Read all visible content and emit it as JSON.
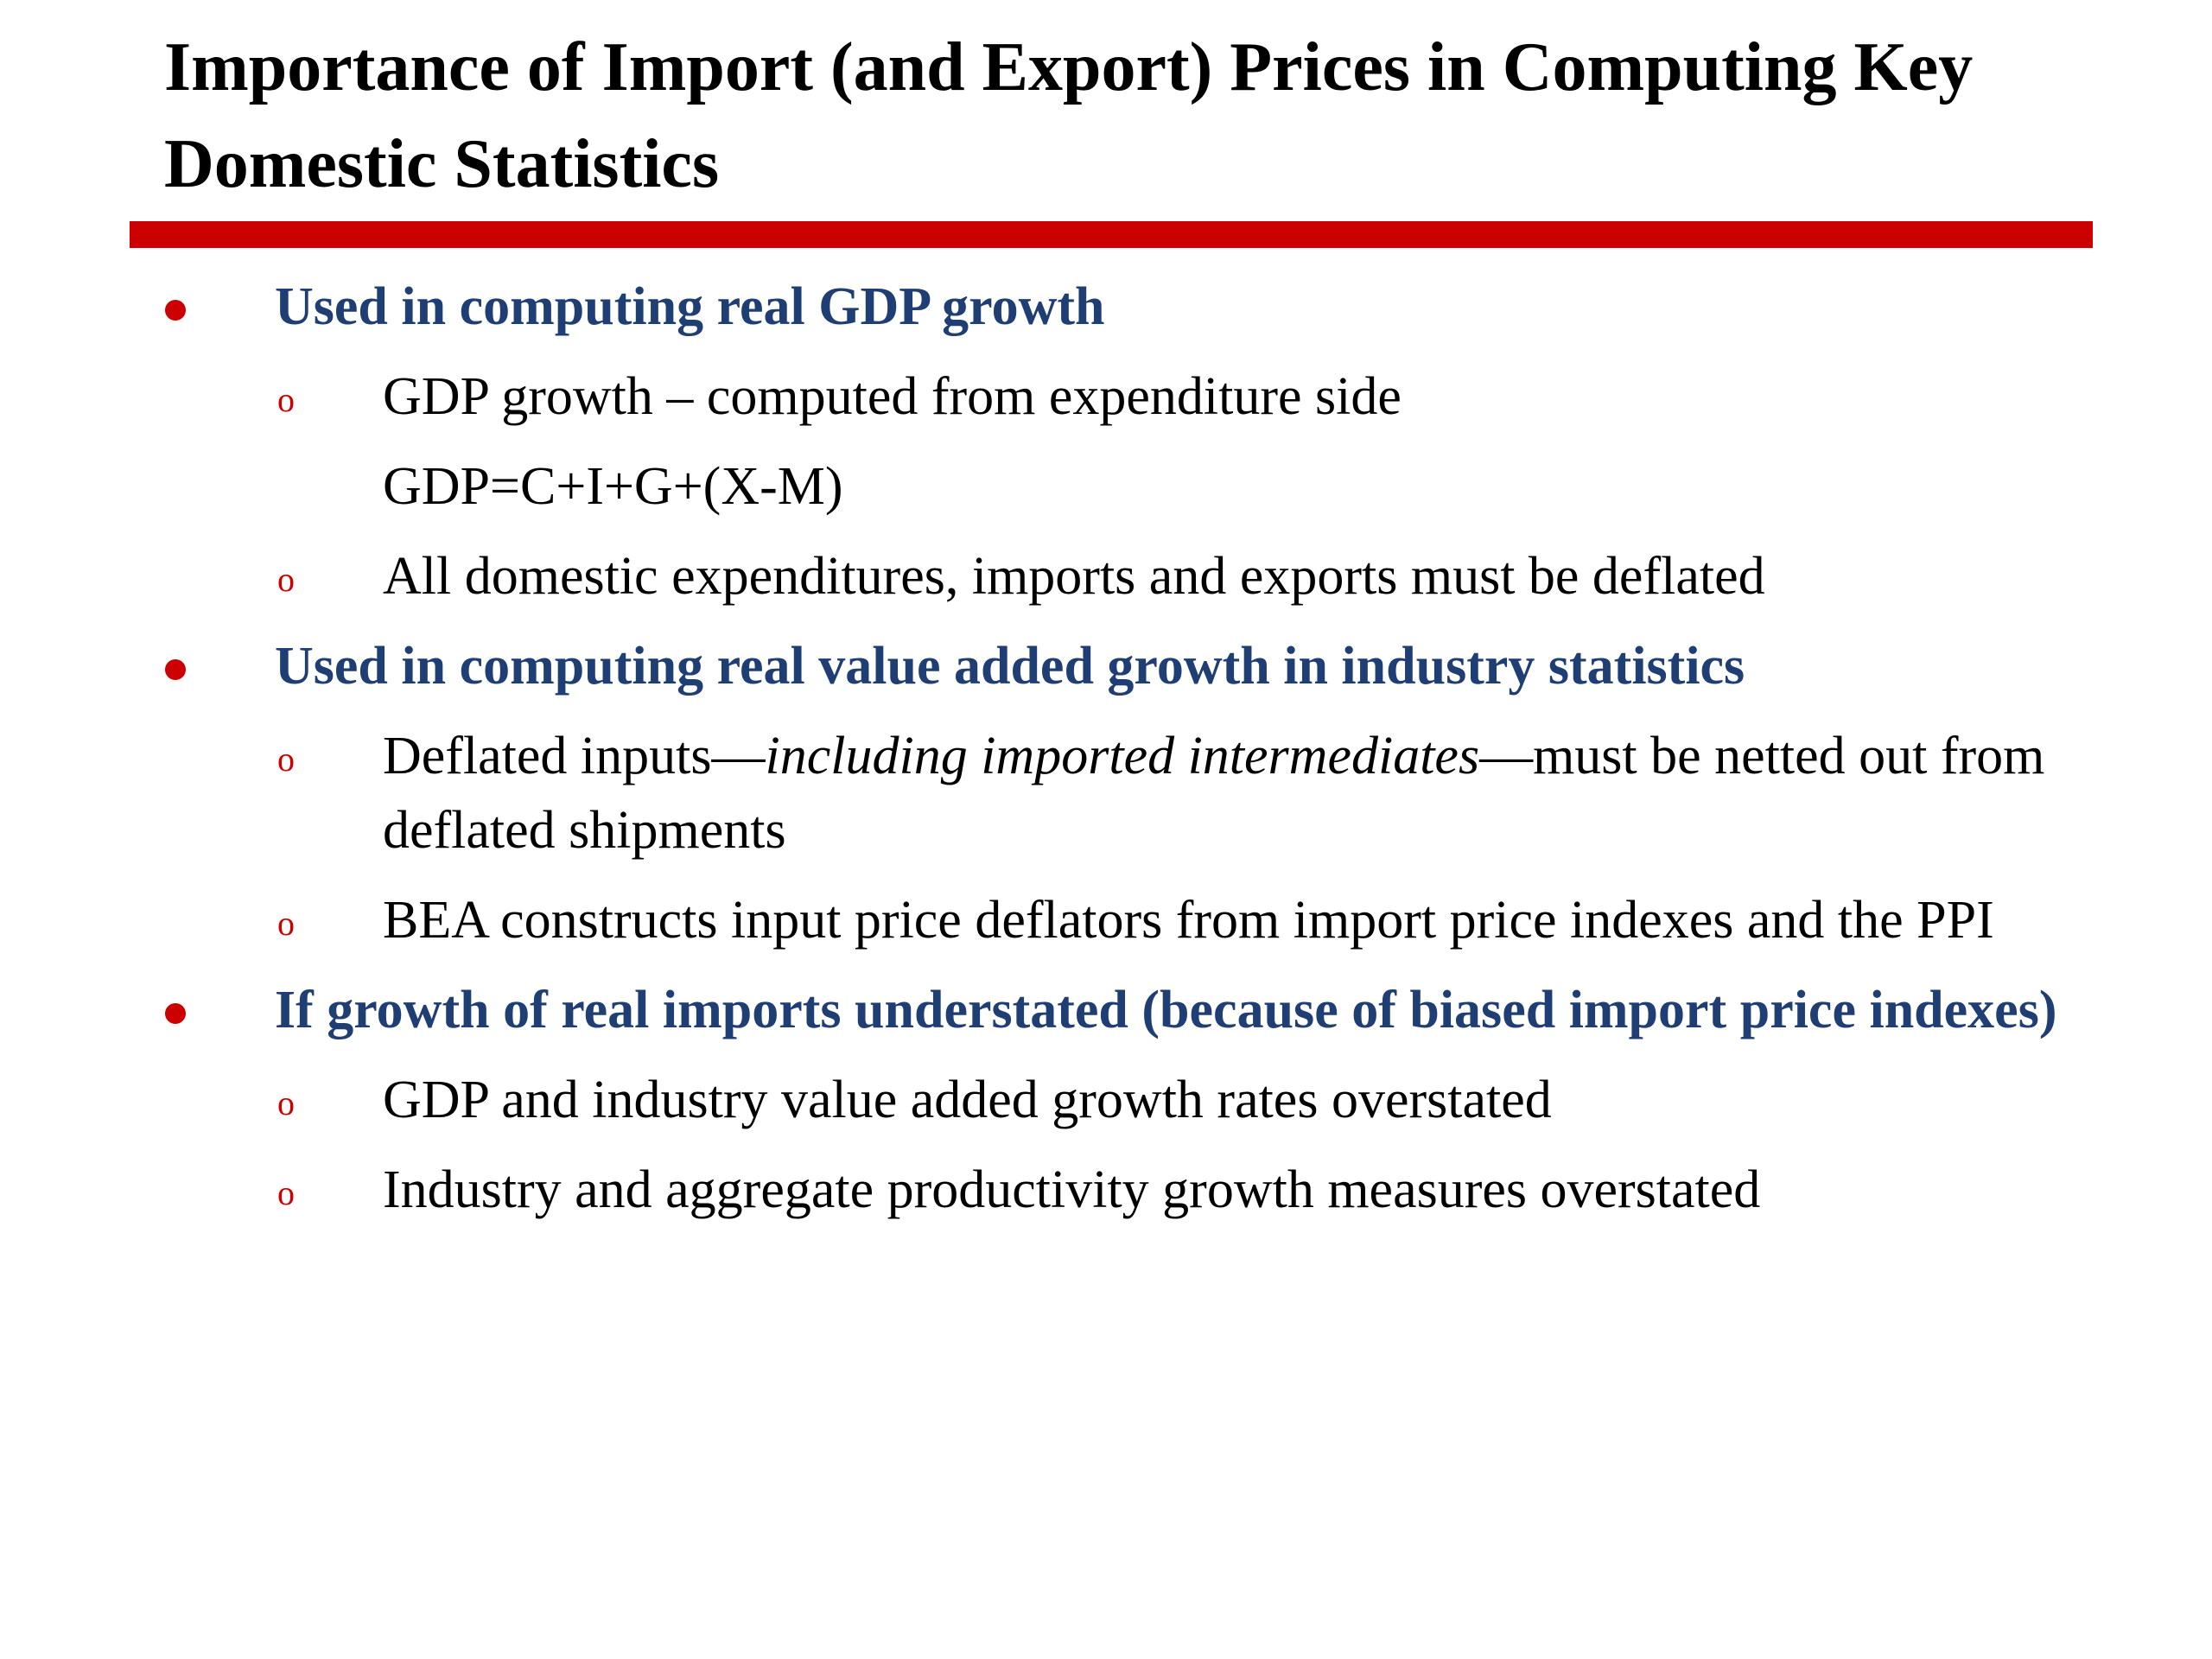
{
  "slide": {
    "title": "Importance of Import (and Export) Prices in Computing Key Domestic Statistics",
    "accent_color": "#cc0000",
    "heading_color": "#1f3e74",
    "bullets": [
      {
        "text": "Used in computing real GDP growth",
        "subs": [
          "GDP growth – computed from expenditure side",
          "All domestic expenditures, imports and exports must be deflated"
        ],
        "formula": "GDP=C+I+G+(X-M)"
      },
      {
        "text": "Used in computing real value added growth in industry statistics",
        "sub1": {
          "before": "Deflated inputs—",
          "italic": "including imported intermediates",
          "after": "—must be netted out from deflated shipments"
        },
        "sub2": "BEA constructs input price deflators from import price indexes and the PPI"
      },
      {
        "text": "If growth of real imports understated (because of biased import price indexes)",
        "subs": [
          "GDP and industry value added growth rates overstated",
          "Industry and aggregate productivity growth measures overstated"
        ]
      }
    ],
    "bullet_marker": "●",
    "sub_marker": "o"
  }
}
